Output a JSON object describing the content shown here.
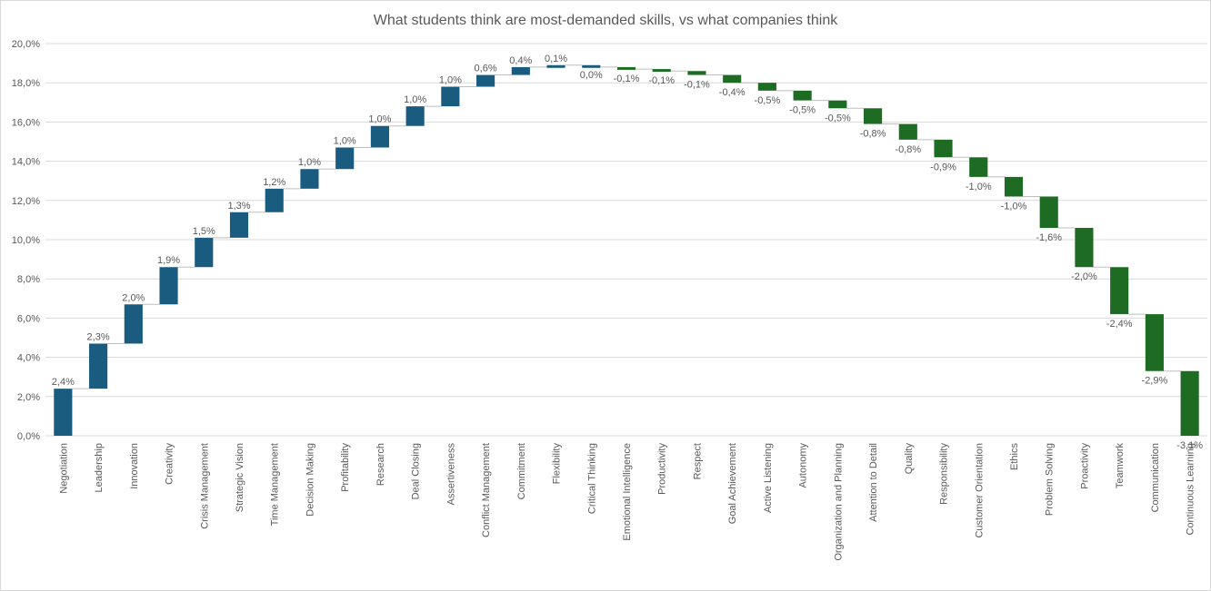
{
  "chart_data": {
    "type": "bar",
    "subtype": "waterfall",
    "title": "What students think are most-demanded skills, vs what companies think",
    "xlabel": "",
    "ylabel": "",
    "ylim": [
      0,
      20
    ],
    "y_ticks": [
      "0,0%",
      "2,0%",
      "4,0%",
      "6,0%",
      "8,0%",
      "10,0%",
      "12,0%",
      "14,0%",
      "16,0%",
      "18,0%",
      "20,0%"
    ],
    "grid": true,
    "legend": "none",
    "colors": {
      "increase": "#1a5b80",
      "decrease": "#1e6b23",
      "connector": "#bfbfbf",
      "grid": "#d9d9d9"
    },
    "categories": [
      "Negotiation",
      "Leadership",
      "Innovation",
      "Creativity",
      "Crisis Management",
      "Strategic Vision",
      "Time Management",
      "Decision Making",
      "Profitability",
      "Research",
      "Deal Closing",
      "Assertiveness",
      "Conflict Management",
      "Commitment",
      "Flexibility",
      "Critical Thinking",
      "Emotional Intelligence",
      "Productivity",
      "Respect",
      "Goal Achievement",
      "Active Listening",
      "Autonomy",
      "Organization and Planning",
      "Attention to Detail",
      "Quality",
      "Responsibility",
      "Customer Orientation",
      "Ethics",
      "Problem Solving",
      "Proactivity",
      "Teamwork",
      "Communication",
      "Continuous Learning"
    ],
    "values": [
      2.4,
      2.3,
      2.0,
      1.9,
      1.5,
      1.3,
      1.2,
      1.0,
      1.0,
      1.0,
      1.0,
      1.0,
      0.6,
      0.4,
      0.1,
      0.0,
      -0.1,
      -0.1,
      -0.1,
      -0.4,
      -0.5,
      -0.5,
      -0.5,
      -0.8,
      -0.8,
      -0.9,
      -1.0,
      -1.0,
      -1.6,
      -2.0,
      -2.4,
      -2.9,
      -3.1
    ],
    "value_labels": [
      "2,4%",
      "2,3%",
      "2,0%",
      "1,9%",
      "1,5%",
      "1,3%",
      "1,2%",
      "1,0%",
      "1,0%",
      "1,0%",
      "1,0%",
      "1,0%",
      "0,6%",
      "0,4%",
      "0,1%",
      "0,0%",
      "-0,1%",
      "-0,1%",
      "-0,1%",
      "-0,4%",
      "-0,5%",
      "-0,5%",
      "-0,5%",
      "-0,8%",
      "-0,8%",
      "-0,9%",
      "-1,0%",
      "-1,0%",
      "-1,6%",
      "-2,0%",
      "-2,4%",
      "-2,9%",
      "-3,1%"
    ],
    "levels": [
      [
        0.0,
        2.4
      ],
      [
        2.4,
        4.7
      ],
      [
        4.7,
        6.7
      ],
      [
        6.7,
        8.6
      ],
      [
        8.6,
        10.1
      ],
      [
        10.1,
        11.4
      ],
      [
        11.4,
        12.6
      ],
      [
        12.6,
        13.6
      ],
      [
        13.6,
        14.7
      ],
      [
        14.7,
        15.8
      ],
      [
        15.8,
        16.8
      ],
      [
        16.8,
        17.8
      ],
      [
        17.8,
        18.4
      ],
      [
        18.4,
        18.8
      ],
      [
        18.8,
        18.9
      ],
      [
        18.9,
        18.8
      ],
      [
        18.8,
        18.7
      ],
      [
        18.7,
        18.6
      ],
      [
        18.6,
        18.4
      ],
      [
        18.4,
        18.0
      ],
      [
        18.0,
        17.6
      ],
      [
        17.6,
        17.1
      ],
      [
        17.1,
        16.7
      ],
      [
        16.7,
        15.9
      ],
      [
        15.9,
        15.1
      ],
      [
        15.1,
        14.2
      ],
      [
        14.2,
        13.2
      ],
      [
        13.2,
        12.2
      ],
      [
        12.2,
        10.6
      ],
      [
        10.6,
        8.6
      ],
      [
        8.6,
        6.2
      ],
      [
        6.2,
        3.3
      ],
      [
        3.3,
        0.0
      ]
    ]
  }
}
